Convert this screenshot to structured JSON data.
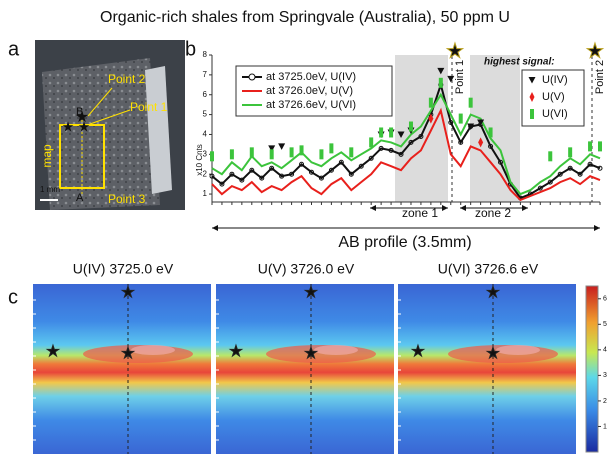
{
  "title": "Organic-rich shales from Springvale (Australia), 50 ppm U",
  "panel_a": {
    "label": "a",
    "point_labels": [
      "Point 2",
      "Point 1",
      "Point 3"
    ],
    "map_label": "map",
    "ends": [
      "B",
      "A"
    ],
    "scale_bar": "1 mm"
  },
  "chart_data": {
    "type": "line",
    "panel_label": "b",
    "y_label": "x10 Cnts",
    "x_label": "AB profile (3.5mm)",
    "zone_labels": [
      "zone 1",
      "zone 2"
    ],
    "point_labels": [
      "Point 1",
      "Point 2"
    ],
    "ylim": [
      0.6,
      8
    ],
    "yticks": [
      1,
      2,
      3,
      4,
      5,
      6,
      7,
      8
    ],
    "series": [
      {
        "name": "at 3725.0eV, U(IV)",
        "color": "#111111",
        "values": [
          1.9,
          1.5,
          2.0,
          1.7,
          2.2,
          1.8,
          2.3,
          1.9,
          2.0,
          2.5,
          2.1,
          1.8,
          2.2,
          2.6,
          2.0,
          2.4,
          2.8,
          3.3,
          3.2,
          3.0,
          3.6,
          3.9,
          5.0,
          6.5,
          4.6,
          3.6,
          4.4,
          4.5,
          3.4,
          2.6,
          1.5,
          0.8,
          1.0,
          1.3,
          1.6,
          2.0,
          2.3,
          2.0,
          2.5,
          2.3
        ]
      },
      {
        "name": "at 3726.0eV, U(V)",
        "color": "#e8201c",
        "values": [
          1.5,
          1.0,
          1.4,
          1.2,
          1.6,
          1.1,
          1.4,
          1.2,
          1.6,
          1.9,
          1.3,
          1.0,
          1.5,
          1.8,
          1.2,
          1.6,
          2.0,
          2.6,
          2.4,
          2.2,
          2.8,
          3.2,
          4.2,
          5.2,
          3.0,
          2.4,
          3.4,
          3.2,
          2.6,
          2.0,
          1.2,
          0.7,
          0.9,
          1.1,
          1.3,
          1.6,
          1.8,
          1.5,
          1.9,
          1.7
        ]
      },
      {
        "name": "at 3726.6eV, U(VI)",
        "color": "#3cc43c",
        "values": [
          2.3,
          2.0,
          2.6,
          2.2,
          2.9,
          2.4,
          2.6,
          2.3,
          2.7,
          3.1,
          2.6,
          2.4,
          2.8,
          3.1,
          2.7,
          3.0,
          3.3,
          3.7,
          3.6,
          3.4,
          4.0,
          4.4,
          5.2,
          6.0,
          5.0,
          4.0,
          5.0,
          4.8,
          3.8,
          3.2,
          1.6,
          1.0,
          1.2,
          1.6,
          1.9,
          2.4,
          2.8,
          2.5,
          3.0,
          2.8
        ]
      }
    ],
    "marker_legend_title": "highest signal:",
    "markers": [
      {
        "name": "U(IV)",
        "color": "#111111",
        "shape": "triangle",
        "values": [
          null,
          null,
          null,
          null,
          null,
          null,
          3.3,
          3.4,
          null,
          null,
          null,
          null,
          null,
          null,
          null,
          null,
          null,
          4.0,
          4.1,
          4.0,
          4.2,
          null,
          null,
          7.2,
          6.8,
          null,
          4.4,
          4.6,
          null,
          null,
          null,
          null,
          null,
          null,
          null,
          null,
          null,
          null,
          null,
          null
        ]
      },
      {
        "name": "U(V)",
        "color": "#e8201c",
        "shape": "diamond",
        "values": [
          null,
          null,
          null,
          null,
          null,
          null,
          null,
          null,
          null,
          null,
          null,
          null,
          null,
          null,
          null,
          null,
          null,
          null,
          null,
          null,
          null,
          null,
          4.8,
          null,
          null,
          null,
          null,
          3.6,
          null,
          null,
          null,
          null,
          null,
          null,
          null,
          null,
          null,
          null,
          null,
          null
        ]
      },
      {
        "name": "U(VI)",
        "color": "#3cc43c",
        "shape": "rect",
        "values": [
          2.9,
          null,
          3.0,
          null,
          3.1,
          null,
          3.0,
          null,
          3.1,
          3.2,
          null,
          3.0,
          3.3,
          null,
          3.1,
          null,
          3.6,
          4.1,
          4.1,
          null,
          4.4,
          null,
          5.6,
          6.6,
          null,
          4.8,
          5.6,
          null,
          4.1,
          null,
          null,
          null,
          null,
          null,
          2.9,
          null,
          3.1,
          null,
          3.4,
          3.4
        ]
      }
    ]
  },
  "panel_c": {
    "label": "c",
    "titles": [
      "U(IV) 3725.0 eV",
      "U(V) 3726.0 eV",
      "U(VI) 3726.6 eV"
    ],
    "colorbar_lim": [
      0,
      6.5
    ],
    "colorbar_ticks": [
      1,
      2,
      3,
      4,
      5,
      6
    ]
  }
}
